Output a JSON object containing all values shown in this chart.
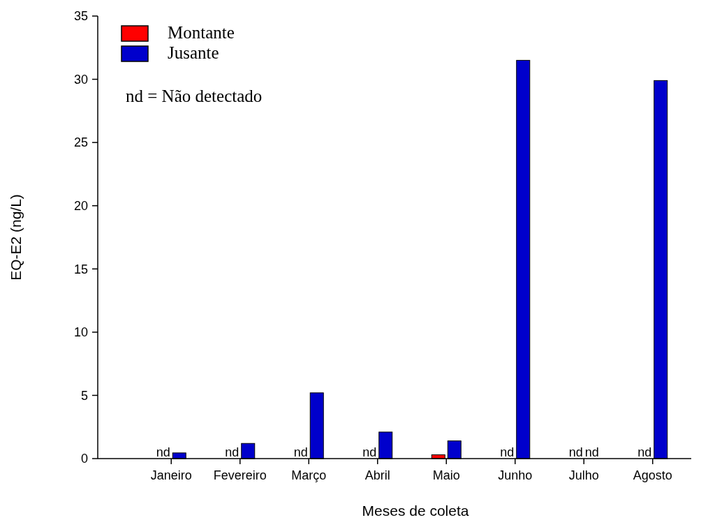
{
  "chart_data": {
    "type": "bar",
    "xlabel": "Meses de coleta",
    "ylabel": "EQ-E2 (ng/L)",
    "categories": [
      "Janeiro",
      "Fevereiro",
      "Março",
      "Abril",
      "Maio",
      "Junho",
      "Julho",
      "Agosto"
    ],
    "series": [
      {
        "name": "Montante",
        "color": "#ff0000",
        "values": [
          null,
          null,
          null,
          null,
          0.3,
          null,
          null,
          null
        ],
        "value_labels": [
          "nd",
          "nd",
          "nd",
          "nd",
          null,
          "nd",
          "nd",
          "nd"
        ]
      },
      {
        "name": "Jusante",
        "color": "#0000cc",
        "values": [
          0.45,
          1.2,
          5.2,
          2.1,
          1.4,
          31.5,
          null,
          29.9
        ],
        "value_labels": [
          null,
          null,
          null,
          null,
          null,
          null,
          "nd",
          null
        ]
      }
    ],
    "ylim": [
      0,
      35
    ],
    "yticks": [
      0,
      5,
      10,
      15,
      20,
      25,
      30,
      35
    ],
    "legend": "top left",
    "grid": false,
    "annotations": [
      "nd = Não detectado"
    ]
  }
}
